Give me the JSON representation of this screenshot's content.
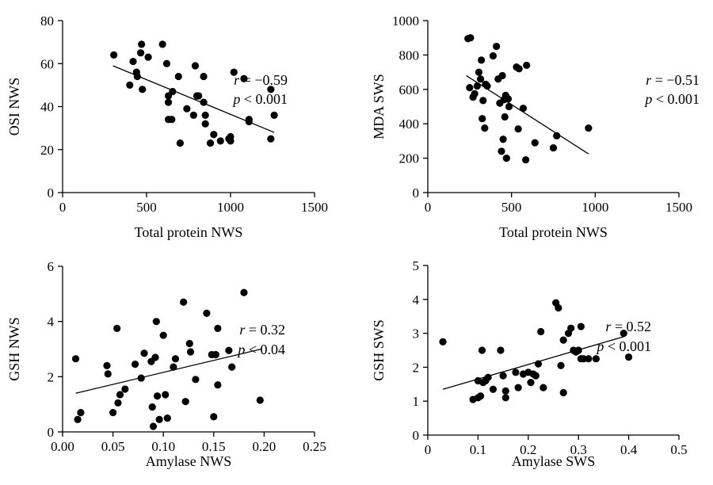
{
  "chart_data": [
    {
      "type": "scatter",
      "xlabel": "Total protein NWS",
      "ylabel": "OSI NWS",
      "xlim": [
        0,
        1500
      ],
      "ylim": [
        0,
        80
      ],
      "xticks": [
        "0",
        "500",
        "1000",
        "1500"
      ],
      "yticks": [
        "0",
        "20",
        "40",
        "60",
        "80"
      ],
      "annotation": {
        "r": "r = −0.59",
        "p": "p < 0.001"
      },
      "trend": [
        [
          300,
          59
        ],
        [
          1260,
          28
        ]
      ],
      "points": [
        [
          305,
          64
        ],
        [
          400,
          50
        ],
        [
          420,
          61
        ],
        [
          440,
          56
        ],
        [
          445,
          54
        ],
        [
          465,
          65
        ],
        [
          470,
          69
        ],
        [
          475,
          48
        ],
        [
          510,
          63
        ],
        [
          595,
          69
        ],
        [
          620,
          60
        ],
        [
          630,
          45
        ],
        [
          630,
          42
        ],
        [
          630,
          34
        ],
        [
          650,
          34
        ],
        [
          655,
          47
        ],
        [
          690,
          54
        ],
        [
          700,
          23
        ],
        [
          740,
          39
        ],
        [
          780,
          36
        ],
        [
          790,
          59
        ],
        [
          800,
          45
        ],
        [
          810,
          45
        ],
        [
          840,
          54
        ],
        [
          840,
          42
        ],
        [
          850,
          36
        ],
        [
          850,
          32
        ],
        [
          880,
          23
        ],
        [
          900,
          27
        ],
        [
          940,
          24
        ],
        [
          990,
          25
        ],
        [
          1000,
          26
        ],
        [
          1000,
          24
        ],
        [
          1020,
          56
        ],
        [
          1080,
          53
        ],
        [
          1110,
          34
        ],
        [
          1110,
          33
        ],
        [
          1240,
          48
        ],
        [
          1240,
          25
        ],
        [
          1260,
          36
        ]
      ]
    },
    {
      "type": "scatter",
      "xlabel": "Total protein NWS",
      "ylabel": "MDA SWS",
      "xlim": [
        0,
        1500
      ],
      "ylim": [
        0,
        1000
      ],
      "xticks": [
        "0",
        "500",
        "1000",
        "1500"
      ],
      "yticks": [
        "0",
        "200",
        "400",
        "600",
        "800",
        "1000"
      ],
      "annotation": {
        "r": "r = −0.51",
        "p": "p < 0.001"
      },
      "trend": [
        [
          230,
          680
        ],
        [
          960,
          225
        ]
      ],
      "points": [
        [
          240,
          895
        ],
        [
          255,
          900
        ],
        [
          250,
          610
        ],
        [
          270,
          555
        ],
        [
          280,
          575
        ],
        [
          295,
          620
        ],
        [
          305,
          700
        ],
        [
          315,
          660
        ],
        [
          320,
          770
        ],
        [
          325,
          430
        ],
        [
          330,
          535
        ],
        [
          340,
          375
        ],
        [
          345,
          630
        ],
        [
          355,
          620
        ],
        [
          390,
          795
        ],
        [
          410,
          850
        ],
        [
          420,
          660
        ],
        [
          430,
          520
        ],
        [
          440,
          240
        ],
        [
          445,
          680
        ],
        [
          450,
          310
        ],
        [
          455,
          540
        ],
        [
          460,
          440
        ],
        [
          465,
          565
        ],
        [
          470,
          200
        ],
        [
          480,
          545
        ],
        [
          485,
          500
        ],
        [
          530,
          730
        ],
        [
          540,
          370
        ],
        [
          545,
          720
        ],
        [
          570,
          490
        ],
        [
          585,
          190
        ],
        [
          590,
          740
        ],
        [
          640,
          290
        ],
        [
          750,
          260
        ],
        [
          770,
          330
        ],
        [
          960,
          375
        ]
      ]
    },
    {
      "type": "scatter",
      "xlabel": "Amylase NWS",
      "ylabel": "GSH NWS",
      "xlim": [
        0,
        0.25
      ],
      "ylim": [
        0,
        6
      ],
      "xticks": [
        "0.00",
        "0.05",
        "0.10",
        "0.15",
        "0.20",
        "0.25"
      ],
      "yticks": [
        "0",
        "2",
        "4",
        "6"
      ],
      "annotation": {
        "r": "r = 0.32",
        "p": "p < 0.04"
      },
      "trend": [
        [
          0.013,
          1.4
        ],
        [
          0.197,
          3.0
        ]
      ],
      "points": [
        [
          0.013,
          2.65
        ],
        [
          0.015,
          0.45
        ],
        [
          0.018,
          0.7
        ],
        [
          0.044,
          2.4
        ],
        [
          0.045,
          2.1
        ],
        [
          0.05,
          0.7
        ],
        [
          0.054,
          3.75
        ],
        [
          0.055,
          1.05
        ],
        [
          0.057,
          1.35
        ],
        [
          0.062,
          1.55
        ],
        [
          0.072,
          2.45
        ],
        [
          0.078,
          1.95
        ],
        [
          0.081,
          2.85
        ],
        [
          0.088,
          2.55
        ],
        [
          0.089,
          0.9
        ],
        [
          0.09,
          0.2
        ],
        [
          0.092,
          2.7
        ],
        [
          0.093,
          4.0
        ],
        [
          0.094,
          1.3
        ],
        [
          0.096,
          0.45
        ],
        [
          0.1,
          3.5
        ],
        [
          0.102,
          1.35
        ],
        [
          0.104,
          0.5
        ],
        [
          0.11,
          2.35
        ],
        [
          0.112,
          2.65
        ],
        [
          0.12,
          4.7
        ],
        [
          0.122,
          1.1
        ],
        [
          0.126,
          3.2
        ],
        [
          0.127,
          2.9
        ],
        [
          0.132,
          1.9
        ],
        [
          0.143,
          4.3
        ],
        [
          0.148,
          2.8
        ],
        [
          0.15,
          0.55
        ],
        [
          0.152,
          2.8
        ],
        [
          0.154,
          3.75
        ],
        [
          0.154,
          1.7
        ],
        [
          0.165,
          2.95
        ],
        [
          0.168,
          2.35
        ],
        [
          0.18,
          5.05
        ],
        [
          0.196,
          1.15
        ]
      ]
    },
    {
      "type": "scatter",
      "xlabel": "Amylase SWS",
      "ylabel": "GSH SWS",
      "xlim": [
        0,
        0.5
      ],
      "ylim": [
        0,
        5
      ],
      "xticks": [
        "0",
        "0.1",
        "0.2",
        "0.3",
        "0.4",
        "0.5"
      ],
      "yticks": [
        "0",
        "1",
        "2",
        "3",
        "4",
        "5"
      ],
      "annotation": {
        "r": "r = 0.52",
        "p": "p < 0.001"
      },
      "trend": [
        [
          0.03,
          1.35
        ],
        [
          0.39,
          2.9
        ]
      ],
      "points": [
        [
          0.03,
          2.75
        ],
        [
          0.09,
          1.05
        ],
        [
          0.1,
          1.6
        ],
        [
          0.1,
          1.1
        ],
        [
          0.105,
          1.15
        ],
        [
          0.108,
          2.5
        ],
        [
          0.11,
          1.55
        ],
        [
          0.115,
          1.6
        ],
        [
          0.12,
          1.7
        ],
        [
          0.13,
          1.35
        ],
        [
          0.145,
          2.5
        ],
        [
          0.15,
          1.75
        ],
        [
          0.155,
          1.3
        ],
        [
          0.155,
          1.1
        ],
        [
          0.175,
          1.85
        ],
        [
          0.18,
          1.4
        ],
        [
          0.19,
          1.8
        ],
        [
          0.2,
          1.85
        ],
        [
          0.205,
          1.55
        ],
        [
          0.21,
          1.8
        ],
        [
          0.215,
          1.75
        ],
        [
          0.22,
          2.1
        ],
        [
          0.225,
          3.05
        ],
        [
          0.23,
          1.4
        ],
        [
          0.255,
          3.9
        ],
        [
          0.26,
          3.75
        ],
        [
          0.265,
          2.05
        ],
        [
          0.27,
          2.8
        ],
        [
          0.27,
          1.25
        ],
        [
          0.28,
          3.0
        ],
        [
          0.285,
          3.15
        ],
        [
          0.29,
          2.5
        ],
        [
          0.295,
          2.45
        ],
        [
          0.3,
          2.5
        ],
        [
          0.305,
          2.25
        ],
        [
          0.305,
          3.2
        ],
        [
          0.31,
          2.25
        ],
        [
          0.32,
          2.25
        ],
        [
          0.335,
          2.25
        ],
        [
          0.39,
          3.0
        ],
        [
          0.4,
          2.3
        ]
      ]
    }
  ]
}
